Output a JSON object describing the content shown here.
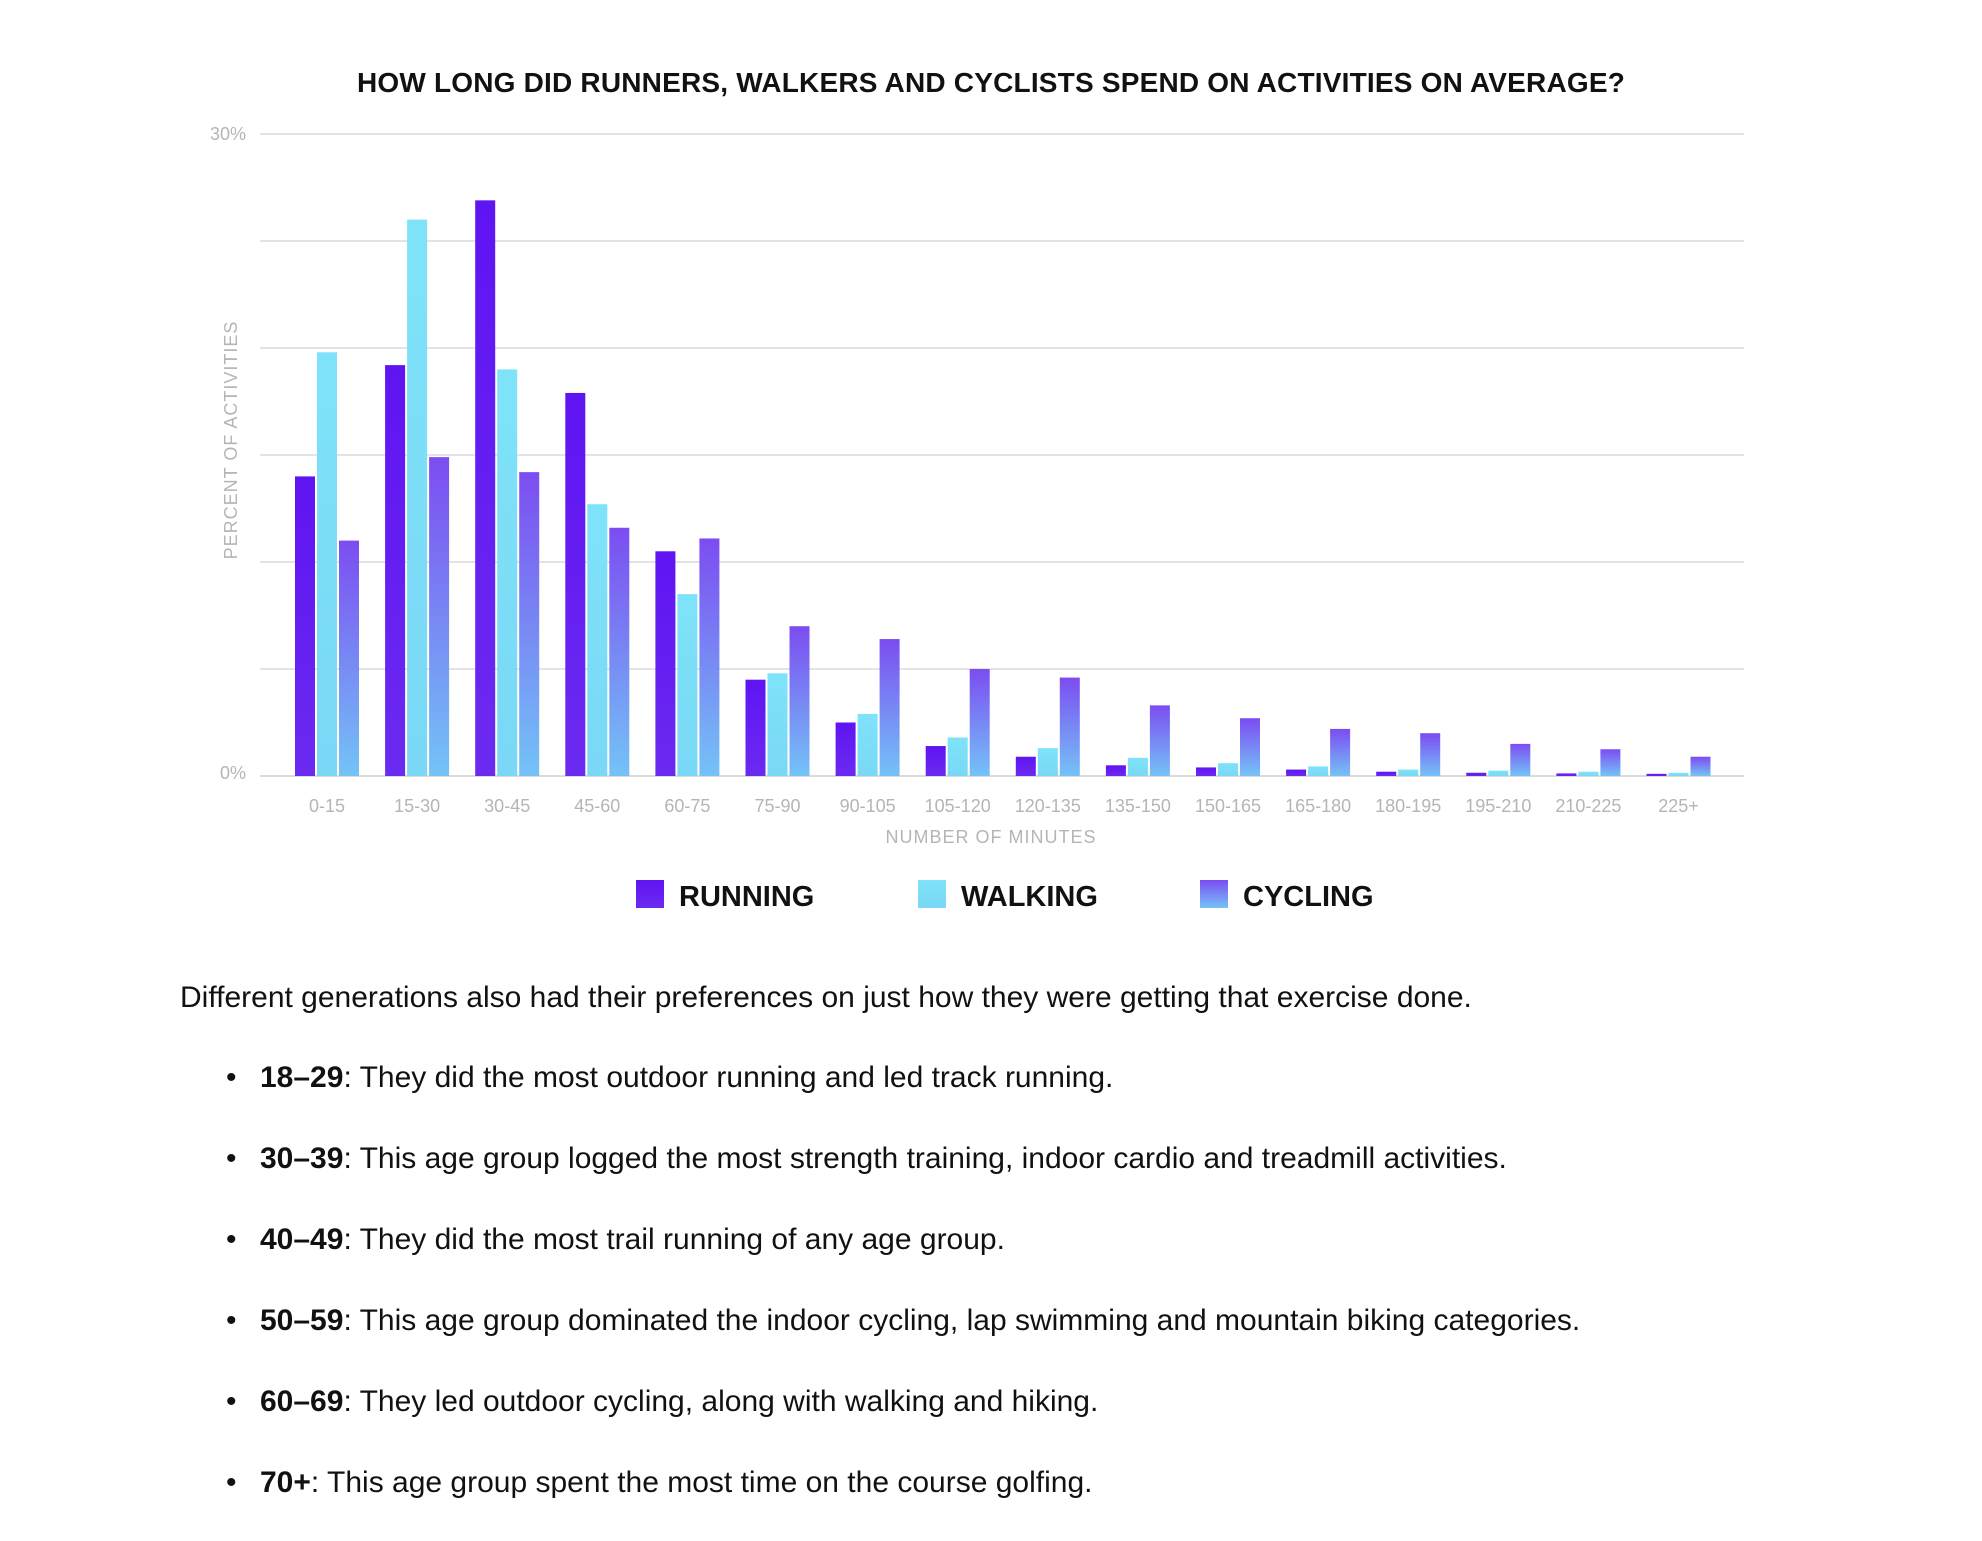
{
  "chart_data": {
    "type": "bar",
    "title": "HOW LONG DID RUNNERS, WALKERS AND CYCLISTS SPEND ON ACTIVITIES ON AVERAGE?",
    "xlabel": "NUMBER OF MINUTES",
    "ylabel": "PERCENT OF ACTIVITIES",
    "ylim": [
      0,
      30
    ],
    "y_tick_labels": {
      "0": "0%",
      "30": "30%"
    },
    "grid": true,
    "legend_position": "bottom-center",
    "categories": [
      "0-15",
      "15-30",
      "30-45",
      "45-60",
      "60-75",
      "75-90",
      "90-105",
      "105-120",
      "120-135",
      "135-150",
      "150-165",
      "165-180",
      "180-195",
      "195-210",
      "210-225",
      "225+"
    ],
    "series": [
      {
        "name": "RUNNING",
        "color": "#5f1df0",
        "values": [
          14.0,
          19.2,
          26.9,
          17.9,
          10.5,
          4.5,
          2.5,
          1.4,
          0.9,
          0.5,
          0.4,
          0.3,
          0.2,
          0.15,
          0.12,
          0.1
        ]
      },
      {
        "name": "WALKING",
        "color": "#7de1f7",
        "values": [
          19.8,
          26.0,
          19.0,
          12.7,
          8.5,
          4.8,
          2.9,
          1.8,
          1.3,
          0.85,
          0.6,
          0.45,
          0.3,
          0.25,
          0.2,
          0.15
        ]
      },
      {
        "name": "CYCLING",
        "color": "#7a57f0",
        "values": [
          11.0,
          14.9,
          14.2,
          11.6,
          11.1,
          7.0,
          6.4,
          5.0,
          4.6,
          3.3,
          2.7,
          2.2,
          2.0,
          1.5,
          1.25,
          0.9
        ]
      }
    ]
  },
  "article": {
    "intro": "Different generations also had their preferences on just how they were getting that exercise done.",
    "bullet_glyph": "•",
    "items": [
      {
        "label": "18–29",
        "text": ": They did the most outdoor running and led track running."
      },
      {
        "label": "30–39",
        "text": ": This age group logged the most strength training, indoor cardio and treadmill activities."
      },
      {
        "label": "40–49",
        "text": ": They did the most trail running of any age group."
      },
      {
        "label": "50–59",
        "text": ": This age group dominated the indoor cycling, lap swimming and mountain biking categories."
      },
      {
        "label": "60–69",
        "text": ": They led outdoor cycling, along with walking and hiking."
      },
      {
        "label": "70+",
        "text": ": This age group spent the most time on the course golfing."
      }
    ]
  }
}
